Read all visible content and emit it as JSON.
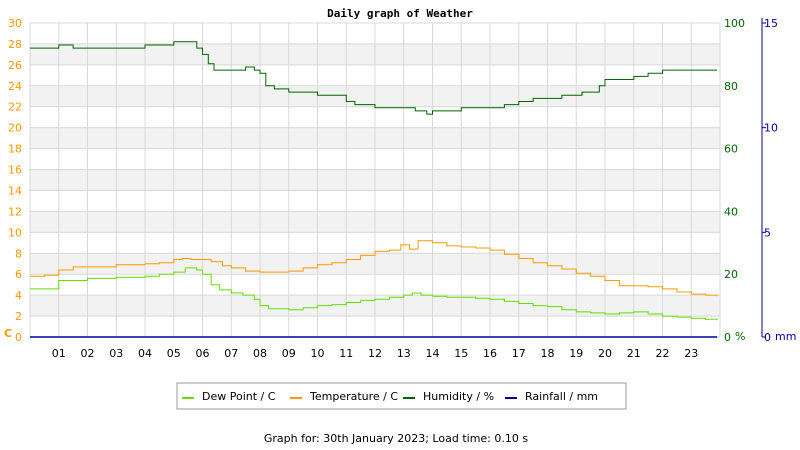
{
  "chart_data": {
    "type": "line",
    "title": "Daily graph of Weather",
    "x": {
      "ticks": [
        "01",
        "02",
        "03",
        "04",
        "05",
        "06",
        "07",
        "08",
        "09",
        "10",
        "11",
        "12",
        "13",
        "14",
        "15",
        "16",
        "17",
        "18",
        "19",
        "20",
        "21",
        "22",
        "23"
      ],
      "range_hours": [
        0,
        24
      ]
    },
    "y_left": {
      "unit": "C",
      "range": [
        0,
        30
      ],
      "ticks": [
        0,
        2,
        4,
        6,
        8,
        10,
        12,
        14,
        16,
        18,
        20,
        22,
        24,
        26,
        28,
        30
      ],
      "color": "#ff9900"
    },
    "y_humidity": {
      "unit": "%",
      "range": [
        0,
        100
      ],
      "ticks": [
        0,
        20,
        40,
        60,
        80,
        100
      ],
      "color": "#006600"
    },
    "y_rain": {
      "unit": "mm",
      "range": [
        0,
        15
      ],
      "ticks": [
        0,
        5,
        10,
        15
      ],
      "color": "#000099"
    },
    "grid": true,
    "legend_position": "bottom",
    "series": [
      {
        "name": "Dew Point / C",
        "color": "#66dd00",
        "axis": "left",
        "x": [
          0,
          1,
          2,
          3,
          4,
          4.5,
          5,
          5.4,
          5.8,
          6,
          6.3,
          6.6,
          7,
          7.4,
          7.8,
          8,
          8.3,
          8.7,
          9,
          9.5,
          10,
          10.5,
          11,
          11.5,
          12,
          12.5,
          13,
          13.3,
          13.6,
          14,
          14.5,
          15,
          15.5,
          16,
          16.5,
          17,
          17.5,
          18,
          18.5,
          19,
          19.5,
          20,
          20.5,
          21,
          21.5,
          22,
          22.5,
          23,
          23.5,
          23.9
        ],
        "values": [
          4.6,
          5.4,
          5.6,
          5.7,
          5.8,
          6.0,
          6.2,
          6.6,
          6.4,
          6.0,
          5.0,
          4.5,
          4.2,
          4.0,
          3.6,
          3.0,
          2.7,
          2.7,
          2.6,
          2.8,
          3.0,
          3.1,
          3.3,
          3.5,
          3.6,
          3.8,
          4.0,
          4.2,
          4.0,
          3.9,
          3.8,
          3.8,
          3.7,
          3.6,
          3.4,
          3.2,
          3.0,
          2.9,
          2.6,
          2.4,
          2.3,
          2.2,
          2.3,
          2.4,
          2.2,
          2.0,
          1.9,
          1.8,
          1.7,
          1.6
        ]
      },
      {
        "name": "Temperature / C",
        "color": "#ff9900",
        "axis": "left",
        "x": [
          0,
          0.5,
          1,
          1.5,
          2,
          3,
          4,
          4.5,
          5,
          5.3,
          5.6,
          6,
          6.3,
          6.7,
          7,
          7.5,
          8,
          8.5,
          9,
          9.5,
          10,
          10.5,
          11,
          11.5,
          12,
          12.5,
          12.9,
          13.2,
          13.5,
          14,
          14.5,
          15,
          15.5,
          16,
          16.5,
          17,
          17.5,
          18,
          18.5,
          19,
          19.5,
          20,
          20.5,
          21,
          21.5,
          22,
          22.5,
          23,
          23.5,
          23.9
        ],
        "values": [
          5.8,
          5.9,
          6.4,
          6.7,
          6.7,
          6.9,
          7.0,
          7.1,
          7.4,
          7.5,
          7.4,
          7.4,
          7.2,
          6.8,
          6.6,
          6.3,
          6.2,
          6.2,
          6.3,
          6.6,
          6.9,
          7.1,
          7.4,
          7.8,
          8.2,
          8.3,
          8.8,
          8.4,
          9.2,
          9.0,
          8.7,
          8.6,
          8.5,
          8.3,
          7.9,
          7.5,
          7.1,
          6.8,
          6.5,
          6.1,
          5.8,
          5.4,
          4.9,
          4.9,
          4.8,
          4.6,
          4.3,
          4.1,
          4.0,
          3.9
        ]
      },
      {
        "name": "Humidity / %",
        "color": "#006600",
        "axis": "humidity",
        "x": [
          0,
          0.8,
          1,
          1.5,
          2,
          3,
          3.6,
          4,
          4.6,
          5,
          5.2,
          5.8,
          6,
          6.2,
          6.4,
          6.6,
          7,
          7.5,
          7.8,
          8,
          8.2,
          8.5,
          9,
          9.5,
          10,
          10.5,
          11,
          11.3,
          11.6,
          12,
          12.5,
          13,
          13.4,
          13.8,
          14,
          14.5,
          15,
          15.5,
          16,
          16.5,
          17,
          17.5,
          18,
          18.5,
          19,
          19.2,
          19.5,
          19.8,
          20,
          20.5,
          21,
          21.5,
          22,
          22.5,
          23,
          23.9
        ],
        "values": [
          92,
          92,
          93,
          92,
          92,
          92,
          92,
          93,
          93,
          94,
          94,
          92,
          90,
          87,
          85,
          85,
          85,
          86,
          85,
          84,
          80,
          79,
          78,
          78,
          77,
          77,
          75,
          74,
          74,
          73,
          73,
          73,
          72,
          71,
          72,
          72,
          73,
          73,
          73,
          74,
          75,
          76,
          76,
          77,
          77,
          78,
          78,
          80,
          82,
          82,
          83,
          84,
          85,
          85,
          85,
          85
        ]
      },
      {
        "name": "Rainfall / mm",
        "color": "#000099",
        "axis": "rain",
        "x": [
          0,
          23.9
        ],
        "values": [
          0,
          0
        ]
      }
    ]
  },
  "footer": "Graph for: 30th January 2023; Load time: 0.10 s"
}
